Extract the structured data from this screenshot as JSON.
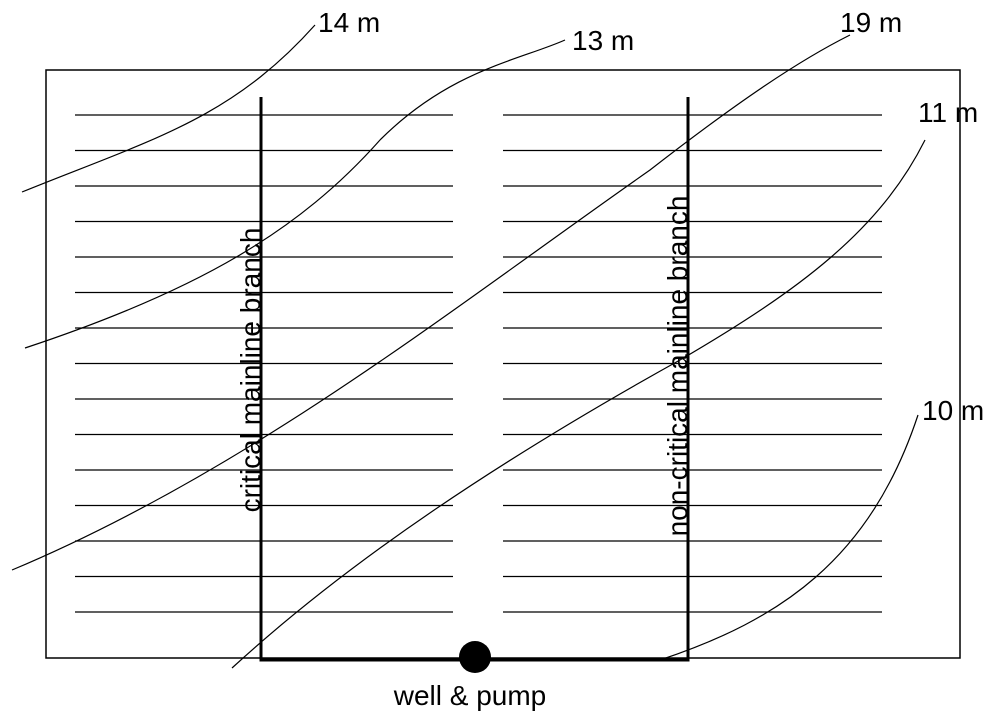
{
  "contours": [
    {
      "label": "14 m"
    },
    {
      "label": "13 m"
    },
    {
      "label": "19 m"
    },
    {
      "label": "11 m"
    },
    {
      "label": "10 m"
    }
  ],
  "branches": {
    "critical": "critical mainline branch",
    "non_critical": "non-critical mainline branch"
  },
  "source": "well & pump"
}
